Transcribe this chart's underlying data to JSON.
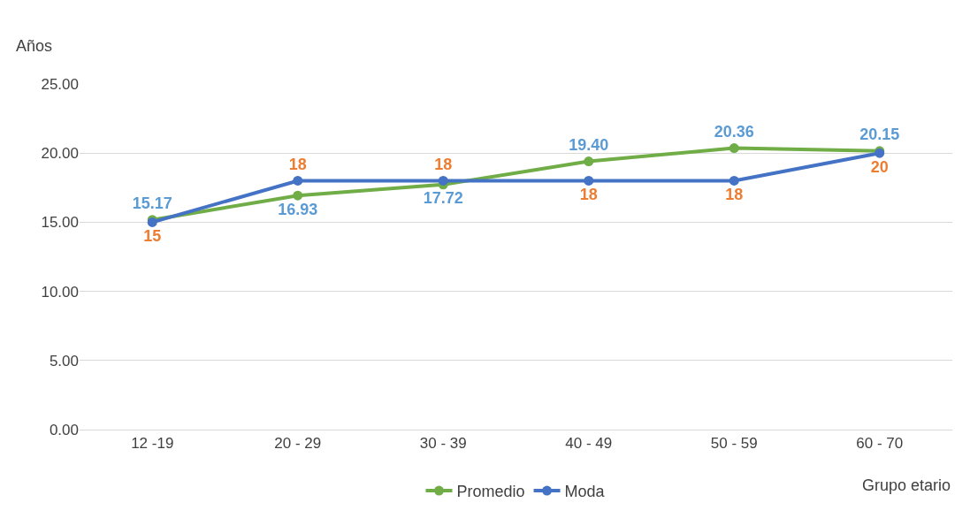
{
  "chart_data": {
    "type": "line",
    "ylabel": "Años",
    "xlabel": "Grupo etario",
    "categories": [
      "12 -19",
      "20 - 29",
      "30 - 39",
      "40 - 49",
      "50 - 59",
      "60 - 70"
    ],
    "series": [
      {
        "name": "Promedio",
        "color": "#70ad47",
        "values": [
          15.17,
          16.93,
          17.72,
          19.4,
          20.36,
          20.15
        ],
        "value_labels": [
          "15.17",
          "16.93",
          "17.72",
          "19.40",
          "20.36",
          "20.15"
        ]
      },
      {
        "name": "Moda",
        "color": "#4472c4",
        "values": [
          15,
          18,
          18,
          18,
          18,
          20
        ],
        "value_labels": [
          "15",
          "18",
          "18",
          "18",
          "18",
          "20"
        ]
      }
    ],
    "ylim": [
      0,
      25
    ],
    "yticks": [
      {
        "value": 0,
        "label": "0.00"
      },
      {
        "value": 5,
        "label": "5.00"
      },
      {
        "value": 10,
        "label": "10.00"
      },
      {
        "value": 15,
        "label": "15.00"
      },
      {
        "value": 20,
        "label": "20.00"
      },
      {
        "value": 25,
        "label": "25.00"
      }
    ],
    "grid": "y",
    "legend": "bottom",
    "marker": "circle",
    "line_style": "solid"
  }
}
